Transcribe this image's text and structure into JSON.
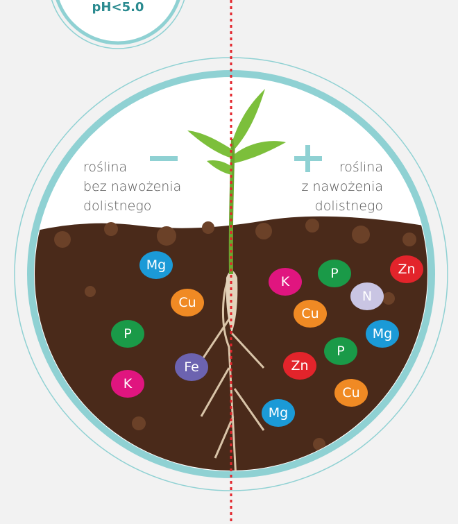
{
  "badge": "pH<5.0",
  "left_label": [
    "roślina",
    "bez nawożenia",
    "dolistnego"
  ],
  "right_label": [
    "roślina",
    "z nawożenia",
    "dolistnego"
  ],
  "nodes": [
    {
      "label": "Mg",
      "color": "#1b9ad7"
    },
    {
      "label": "Cu",
      "color": "#f08a24"
    },
    {
      "label": "P",
      "color": "#1a9a48"
    },
    {
      "label": "Fe",
      "color": "#6c63b0"
    },
    {
      "label": "K",
      "color": "#e0157f"
    },
    {
      "label": "K",
      "color": "#e0157f"
    },
    {
      "label": "P",
      "color": "#1a9a48"
    },
    {
      "label": "Zn",
      "color": "#e3242b"
    },
    {
      "label": "N",
      "color": "#c9c5e3"
    },
    {
      "label": "Cu",
      "color": "#f08a24"
    },
    {
      "label": "Mg",
      "color": "#1b9ad7"
    },
    {
      "label": "P",
      "color": "#1a9a48"
    },
    {
      "label": "Zn",
      "color": "#e3242b"
    },
    {
      "label": "Cu",
      "color": "#f08a24"
    },
    {
      "label": "Mg",
      "color": "#1b9ad7"
    }
  ]
}
